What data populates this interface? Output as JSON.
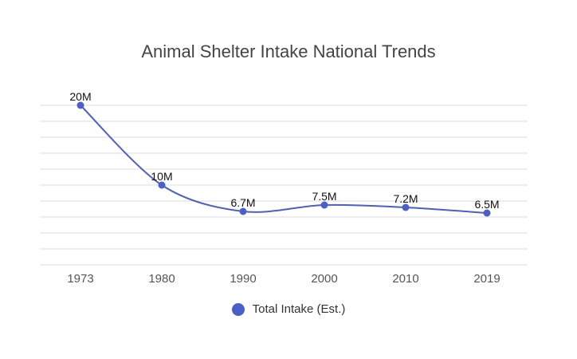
{
  "chart_data": {
    "type": "line",
    "title": "Animal Shelter Intake National Trends",
    "xlabel": "",
    "ylabel": "",
    "categories": [
      "1973",
      "1980",
      "1990",
      "2000",
      "2010",
      "2019"
    ],
    "series": [
      {
        "name": "Total Intake (Est.)",
        "values": [
          20,
          10,
          6.7,
          7.5,
          7.2,
          6.5
        ],
        "labels": [
          "20M",
          "10M",
          "6.7M",
          "7.5M",
          "7.2M",
          "6.5M"
        ],
        "color": "#4a5fc8"
      }
    ],
    "ylim": [
      0,
      20
    ],
    "y_gridlines": 11,
    "grid": true,
    "smooth": true,
    "legend_position": "bottom"
  },
  "colors": {
    "series": "#4a5fc8",
    "grid": "#dddddd",
    "title": "#444444"
  }
}
